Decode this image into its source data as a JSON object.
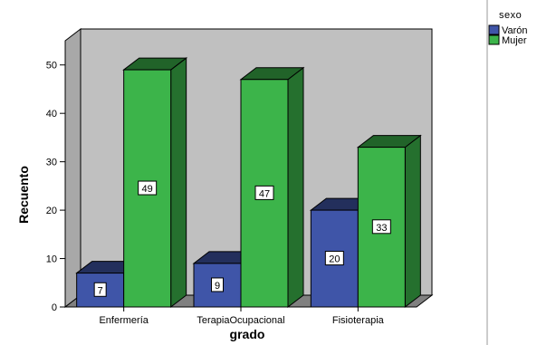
{
  "chart_data": {
    "type": "bar",
    "categories": [
      "Enfermería",
      "TerapiaOcupacional",
      "Fisioterapia"
    ],
    "series": [
      {
        "name": "Varón",
        "values": [
          7,
          9,
          20
        ],
        "color": "#3f55a8"
      },
      {
        "name": "Mujer",
        "values": [
          49,
          47,
          33
        ],
        "color": "#3cb44a"
      }
    ],
    "xlabel": "grado",
    "ylabel": "Recuento",
    "ylim": [
      0,
      55
    ],
    "yticks": [
      0,
      10,
      20,
      30,
      40,
      50
    ],
    "legend_title": "sexo",
    "legend_position": "top-right",
    "wall_color": "#c0c0c0",
    "grid": false,
    "three_d": true
  }
}
